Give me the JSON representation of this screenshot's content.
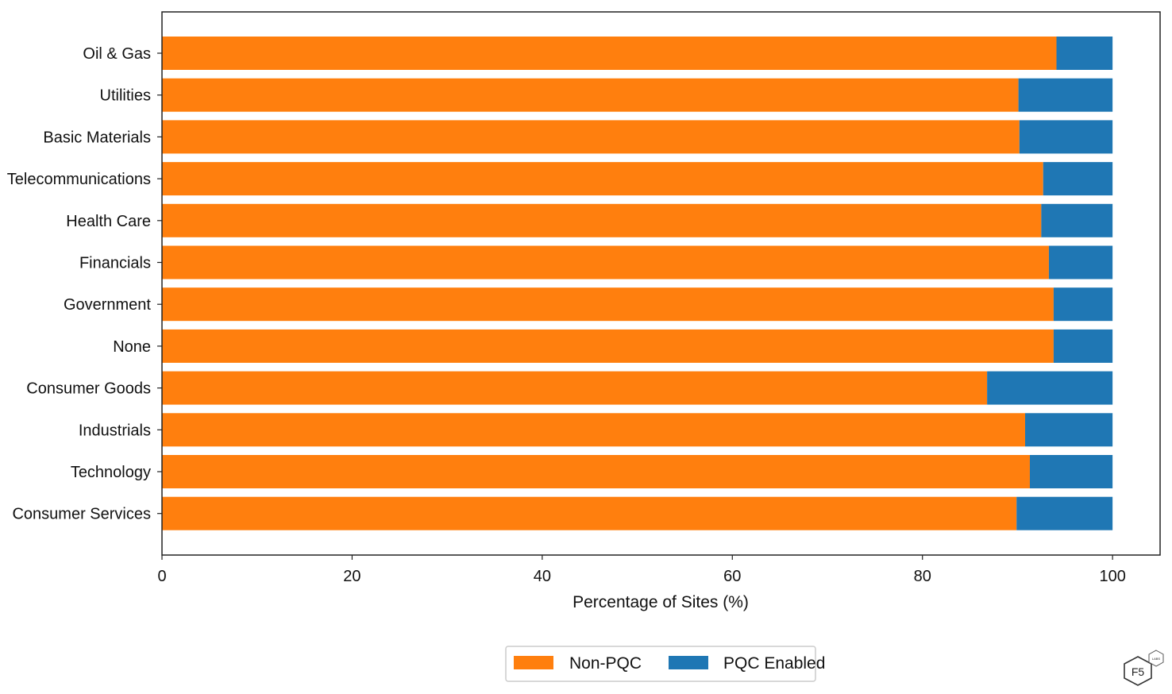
{
  "chart_data": {
    "type": "bar",
    "orientation": "horizontal",
    "stacked": true,
    "categories": [
      "Oil & Gas",
      "Utilities",
      "Basic Materials",
      "Telecommunications",
      "Health Care",
      "Financials",
      "Government",
      "None",
      "Consumer Goods",
      "Industrials",
      "Technology",
      "Consumer Services"
    ],
    "series": [
      {
        "name": "Non-PQC",
        "color": "#ff7f0e",
        "values": [
          94.1,
          90.1,
          90.2,
          92.7,
          92.5,
          93.3,
          93.8,
          93.8,
          86.8,
          90.8,
          91.3,
          89.9
        ]
      },
      {
        "name": "PQC Enabled",
        "color": "#1f77b4",
        "values": [
          5.9,
          9.9,
          9.8,
          7.3,
          7.5,
          6.7,
          6.2,
          6.2,
          13.2,
          9.2,
          8.7,
          10.1
        ]
      }
    ],
    "xlabel": "Percentage of Sites (%)",
    "ylabel": "",
    "title": "",
    "xlim": [
      0,
      105
    ],
    "xticks": [
      "0",
      "20",
      "40",
      "60",
      "80",
      "100"
    ],
    "grid": false,
    "legend_position": "bottom-center"
  },
  "logo": {
    "main": "F5",
    "sub": "LABS"
  }
}
